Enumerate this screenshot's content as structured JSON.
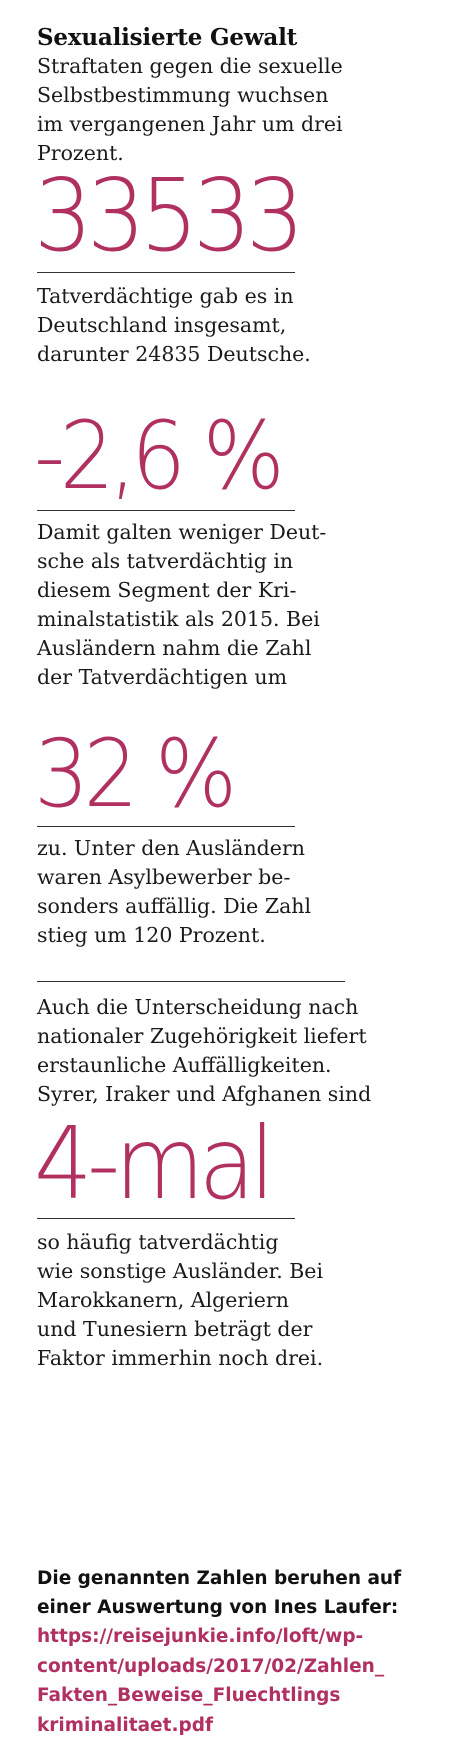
{
  "header": {
    "title": "Sexualisierte Gewalt",
    "intro": "Straftaten gegen die sexuelle\nSelbstbestimmung wuchsen\nim vergangenen Jahr um drei\nProzent."
  },
  "stats": [
    {
      "figure": "33533",
      "text": "Tatverdächtige gab es in\nDeutschland insgesamt,\ndarunter 24835 Deutsche."
    },
    {
      "figure": "-2,6 %",
      "text": "Damit galten weniger Deut-\nsche als tatverdächtig in\ndiesem Segment der Kri-\nminalstatistik als 2015. Bei\nAusländern nahm die Zahl\nder Tatverdächtigen um"
    },
    {
      "figure": "32 %",
      "text": "zu. Unter den Ausländern\nwaren Asylbewerber be-\nsonders auffällig. Die Zahl\nstieg um 120 Prozent."
    },
    {
      "pre_text": "Auch die Unterscheidung nach\nnationaler Zugehörigkeit liefert\nerstaunliche Auffälligkeiten.\nSyrer, Iraker und Afghanen sind",
      "figure": "4-mal",
      "text": "so häufig tatverdächtig\nwie sonstige Ausländer. Bei\nMarokkanern, Algeriern\nund Tunesiern beträgt der\nFaktor immerhin noch drei."
    }
  ],
  "footer": {
    "source_text": "Die genannten Zahlen beruhen auf\neiner Auswertung von Ines Laufer:",
    "source_link": "https://reisejunkie.info/loft/wp-\ncontent/uploads/2017/02/Zahlen_\nFakten_Beweise_Fluechtlings\nkriminalitaet.pdf"
  },
  "colors": {
    "accent": "#b03060",
    "text": "#1a1a1a",
    "rule": "#333333"
  }
}
